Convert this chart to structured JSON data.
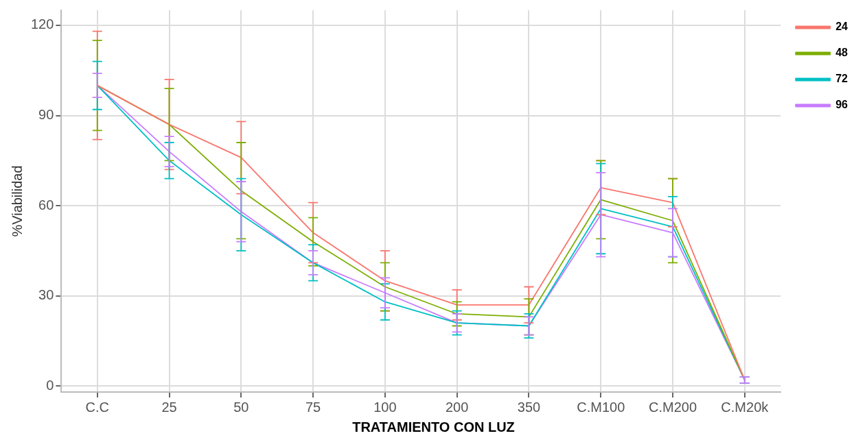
{
  "chart_data": {
    "type": "line",
    "xlabel": "TRATAMIENTO CON LUZ",
    "ylabel": "%Viabilidad",
    "categories": [
      "C.C",
      "25",
      "50",
      "75",
      "100",
      "200",
      "350",
      "C.M100",
      "C.M200",
      "C.M20k"
    ],
    "series": [
      {
        "name": "24",
        "color": "#f8766d",
        "values": [
          100,
          87,
          76,
          51,
          35,
          27,
          27,
          66,
          61,
          2
        ],
        "errors": [
          18,
          15,
          12,
          10,
          10,
          5,
          6,
          9,
          8,
          1
        ]
      },
      {
        "name": "48",
        "color": "#7cae00",
        "values": [
          100,
          87,
          65,
          48,
          33,
          24,
          23,
          62,
          55,
          2
        ],
        "errors": [
          15,
          12,
          16,
          8,
          8,
          4,
          6,
          13,
          14,
          1
        ]
      },
      {
        "name": "72",
        "color": "#00bfc4",
        "values": [
          100,
          75,
          57,
          41,
          28,
          21,
          20,
          59,
          53,
          2
        ],
        "errors": [
          8,
          6,
          12,
          6,
          6,
          4,
          4,
          15,
          10,
          1
        ]
      },
      {
        "name": "96",
        "color": "#c77cff",
        "values": [
          100,
          78,
          58,
          41,
          31,
          21,
          20,
          57,
          51,
          2
        ],
        "errors": [
          4,
          5,
          10,
          4,
          5,
          3,
          3,
          14,
          8,
          1
        ]
      }
    ],
    "ylim": [
      -2,
      125
    ],
    "yticks": [
      0,
      30,
      60,
      90,
      120
    ],
    "grid": true,
    "legend": "top right",
    "marker": "none",
    "line_style": "solid"
  }
}
